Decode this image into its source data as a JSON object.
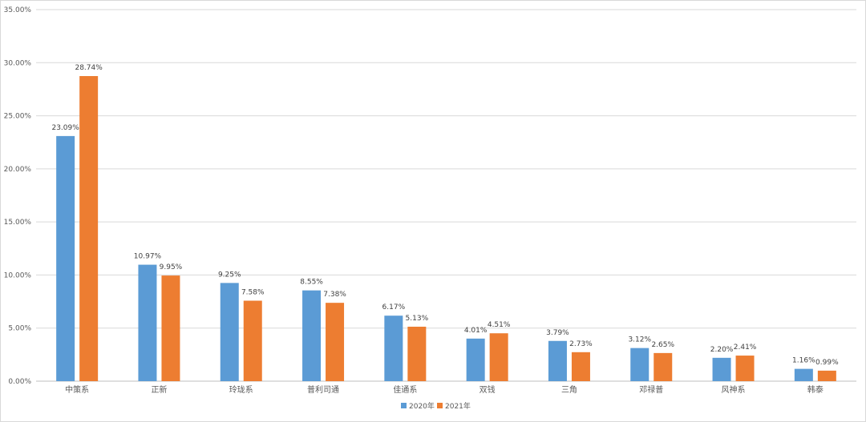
{
  "chart_data": {
    "type": "bar",
    "title": "",
    "xlabel": "",
    "ylabel": "",
    "ylim": [
      0,
      35
    ],
    "y_ticks": [
      "0.00%",
      "5.00%",
      "10.00%",
      "15.00%",
      "20.00%",
      "25.00%",
      "30.00%",
      "35.00%"
    ],
    "grid": true,
    "legend_position": "bottom",
    "categories": [
      "中策系",
      "正新",
      "玲珑系",
      "普利司通",
      "佳通系",
      "双钱",
      "三角",
      "邓禄普",
      "风神系",
      "韩泰"
    ],
    "series": [
      {
        "name": "2020年",
        "color": "#5b9bd5",
        "values": [
          23.09,
          10.97,
          9.25,
          8.55,
          6.17,
          4.01,
          3.79,
          3.12,
          2.2,
          1.16
        ],
        "labels": [
          "23.09%",
          "10.97%",
          "9.25%",
          "8.55%",
          "6.17%",
          "4.01%",
          "3.79%",
          "3.12%",
          "2.20%",
          "1.16%"
        ]
      },
      {
        "name": "2021年",
        "color": "#ed7d31",
        "values": [
          28.74,
          9.95,
          7.58,
          7.38,
          5.13,
          4.51,
          2.73,
          2.65,
          2.41,
          0.99
        ],
        "labels": [
          "28.74%",
          "9.95%",
          "7.58%",
          "7.38%",
          "5.13%",
          "4.51%",
          "2.73%",
          "2.65%",
          "2.41%",
          "0.99%"
        ]
      }
    ]
  }
}
